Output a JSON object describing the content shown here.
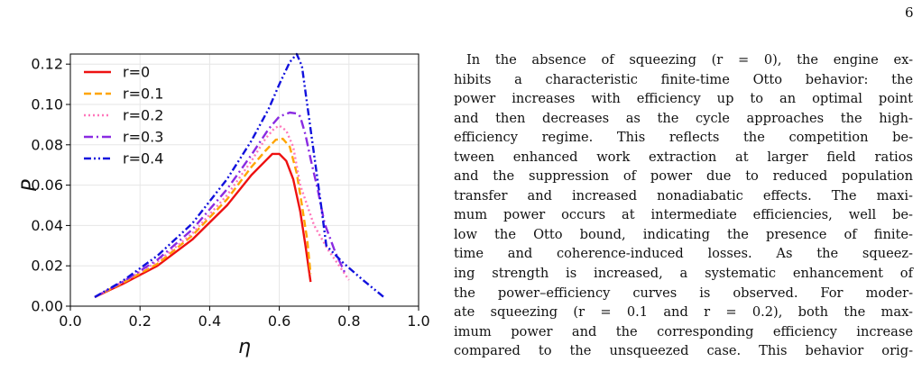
{
  "page": {
    "number": "6"
  },
  "chart_data": {
    "type": "line",
    "xlabel": "η",
    "ylabel": "P",
    "xlim": [
      0.0,
      1.0
    ],
    "ylim": [
      0.0,
      0.125
    ],
    "x_ticks": [
      "0.0",
      "0.2",
      "0.4",
      "0.6",
      "0.8",
      "1.0"
    ],
    "y_ticks": [
      "0.00",
      "0.02",
      "0.04",
      "0.06",
      "0.08",
      "0.10",
      "0.12"
    ],
    "grid": true,
    "legend_position": "top-left",
    "series": [
      {
        "name": "r=0",
        "color": "#ee1111",
        "dash": "solid",
        "x": [
          0.07,
          0.15,
          0.25,
          0.35,
          0.45,
          0.52,
          0.56,
          0.58,
          0.6,
          0.62,
          0.64,
          0.66,
          0.675,
          0.69
        ],
        "y": [
          0.0045,
          0.011,
          0.02,
          0.033,
          0.05,
          0.065,
          0.072,
          0.0755,
          0.0755,
          0.072,
          0.063,
          0.047,
          0.03,
          0.012
        ]
      },
      {
        "name": "r=0.1",
        "color": "#ffa500",
        "dash": "dashed",
        "x": [
          0.07,
          0.15,
          0.25,
          0.35,
          0.45,
          0.52,
          0.56,
          0.59,
          0.61,
          0.63,
          0.65,
          0.665,
          0.68,
          0.69
        ],
        "y": [
          0.0045,
          0.0115,
          0.021,
          0.035,
          0.053,
          0.069,
          0.077,
          0.0825,
          0.083,
          0.079,
          0.066,
          0.05,
          0.033,
          0.016
        ]
      },
      {
        "name": "r=0.2",
        "color": "#ff77bb",
        "dash": "dotted",
        "x": [
          0.07,
          0.15,
          0.25,
          0.35,
          0.45,
          0.52,
          0.56,
          0.585,
          0.6,
          0.62,
          0.64,
          0.66,
          0.7,
          0.74,
          0.78,
          0.8
        ],
        "y": [
          0.0045,
          0.012,
          0.022,
          0.036,
          0.055,
          0.072,
          0.083,
          0.088,
          0.0895,
          0.087,
          0.079,
          0.06,
          0.04,
          0.028,
          0.018,
          0.013
        ]
      },
      {
        "name": "r=0.3",
        "color": "#8a2be2",
        "dash": "dashdot",
        "x": [
          0.07,
          0.15,
          0.25,
          0.35,
          0.45,
          0.52,
          0.57,
          0.6,
          0.63,
          0.65,
          0.66,
          0.675,
          0.69,
          0.71,
          0.73,
          0.76,
          0.79
        ],
        "y": [
          0.0045,
          0.012,
          0.023,
          0.038,
          0.058,
          0.075,
          0.088,
          0.094,
          0.096,
          0.0955,
          0.094,
          0.085,
          0.073,
          0.058,
          0.041,
          0.027,
          0.016
        ]
      },
      {
        "name": "r=0.4",
        "color": "#1111dd",
        "dash": "dashdotdot",
        "x": [
          0.07,
          0.15,
          0.25,
          0.35,
          0.45,
          0.52,
          0.57,
          0.6,
          0.63,
          0.65,
          0.665,
          0.68,
          0.7,
          0.72,
          0.735,
          0.78,
          0.84,
          0.9
        ],
        "y": [
          0.0045,
          0.0125,
          0.025,
          0.041,
          0.063,
          0.082,
          0.098,
          0.11,
          0.121,
          0.125,
          0.119,
          0.1,
          0.075,
          0.05,
          0.03,
          0.022,
          0.013,
          0.0045
        ]
      }
    ]
  },
  "body_text": {
    "lines": [
      "In the absence of squeezing (r = 0), the engine ex-",
      "hibits a characteristic finite-time Otto behavior:  the",
      "power increases with efficiency up to an optimal point",
      "and then decreases as the cycle approaches the high-",
      "efficiency regime.    This reflects the competition be-",
      "tween enhanced work extraction at larger field ratios",
      "and the suppression of power due to reduced population",
      "transfer and increased nonadiabatic effects. The maxi-",
      "mum power occurs at intermediate efficiencies, well be-",
      "low the Otto bound, indicating the presence of finite-",
      "time and coherence-induced losses.    As the squeez-",
      "ing strength is increased, a systematic enhancement of",
      "the power–efficiency curves is observed.    For moder-",
      "ate squeezing (r = 0.1 and r = 0.2), both the max-",
      "imum power and the corresponding efficiency increase",
      "compared to the unsqueezed case. This behavior orig-"
    ]
  }
}
